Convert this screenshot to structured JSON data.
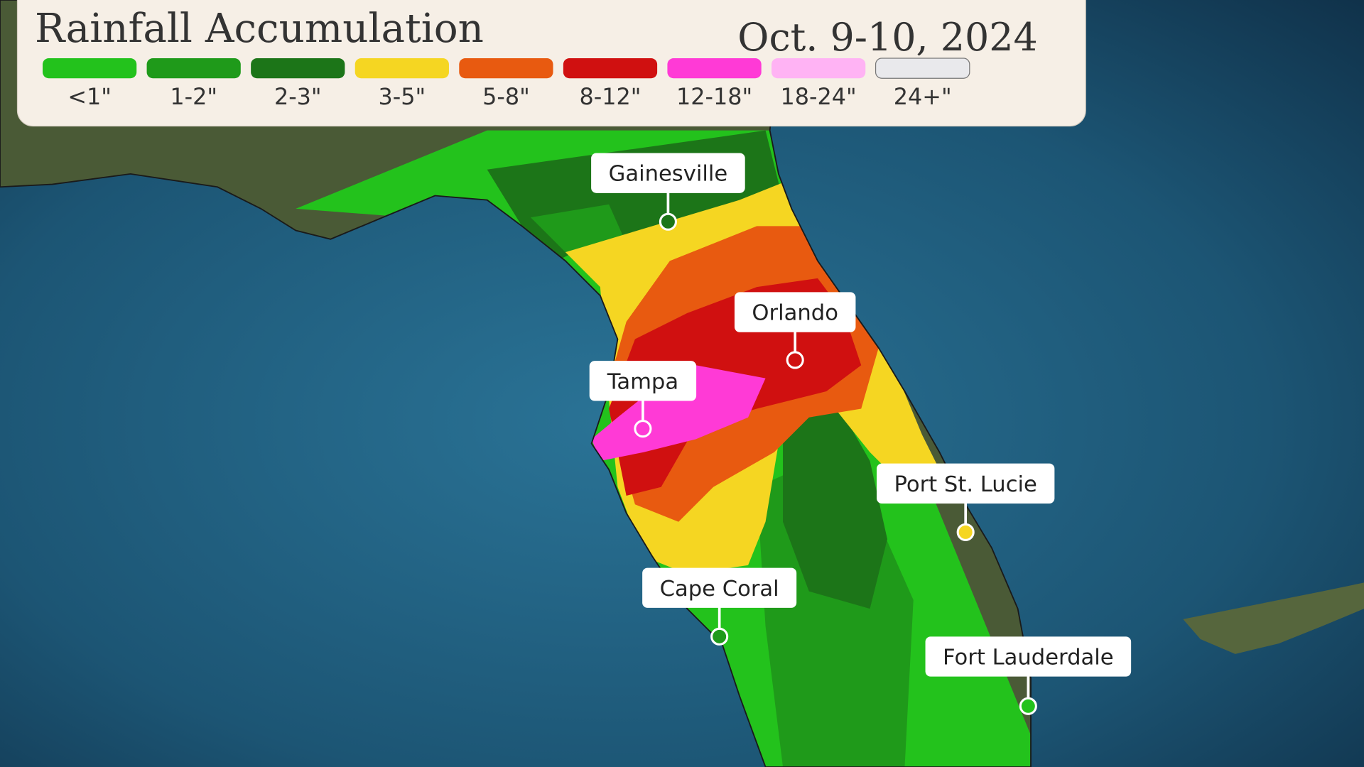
{
  "header": {
    "title": "Rainfall Accumulation",
    "date": "Oct. 9-10, 2024"
  },
  "legend": [
    {
      "label": "<1\"",
      "color": "#23c21c"
    },
    {
      "label": "1-2\"",
      "color": "#1f9a1a"
    },
    {
      "label": "2-3\"",
      "color": "#1c7518"
    },
    {
      "label": "3-5\"",
      "color": "#f5d622"
    },
    {
      "label": "5-8\"",
      "color": "#e85a10"
    },
    {
      "label": "8-12\"",
      "color": "#d01010"
    },
    {
      "label": "12-18\"",
      "color": "#ff3ad6"
    },
    {
      "label": "18-24\"",
      "color": "#ffb3f4"
    },
    {
      "label": "24+\"",
      "color": "#e9e9ec"
    }
  ],
  "cities": [
    {
      "label": "Gainesville"
    },
    {
      "label": "Orlando"
    },
    {
      "label": "Tampa"
    },
    {
      "label": "Port St. Lucie"
    },
    {
      "label": "Cape Coral"
    },
    {
      "label": "Fort Lauderdale"
    }
  ]
}
